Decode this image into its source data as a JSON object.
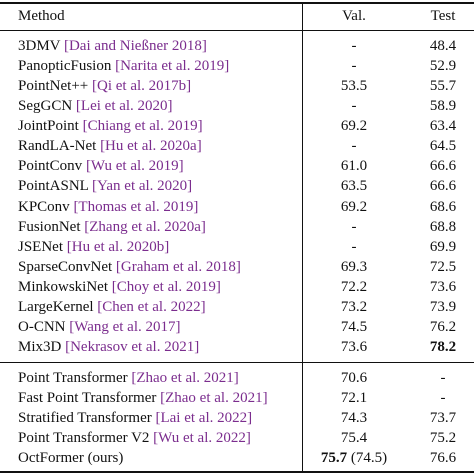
{
  "header": {
    "method": "Method",
    "val": "Val.",
    "test": "Test"
  },
  "groups": [
    {
      "rows": [
        {
          "method": "3DMV",
          "cite": "[Dai and Nießner 2018]",
          "val": "-",
          "test": "48.4"
        },
        {
          "method": "PanopticFusion",
          "cite": "[Narita et al. 2019]",
          "val": "-",
          "test": "52.9"
        },
        {
          "method": "PointNet++",
          "cite": "[Qi et al. 2017b]",
          "val": "53.5",
          "test": "55.7"
        },
        {
          "method": "SegGCN",
          "cite": "[Lei et al. 2020]",
          "val": "-",
          "test": "58.9"
        },
        {
          "method": "JointPoint",
          "cite": "[Chiang et al. 2019]",
          "val": "69.2",
          "test": "63.4"
        },
        {
          "method": "RandLA-Net",
          "cite": "[Hu et al. 2020a]",
          "val": "-",
          "test": "64.5"
        },
        {
          "method": "PointConv",
          "cite": "[Wu et al. 2019]",
          "val": "61.0",
          "test": "66.6"
        },
        {
          "method": "PointASNL",
          "cite": "[Yan et al. 2020]",
          "val": "63.5",
          "test": "66.6"
        },
        {
          "method": "KPConv",
          "cite": "[Thomas et al. 2019]",
          "val": "69.2",
          "test": "68.6"
        },
        {
          "method": "FusionNet",
          "cite": "[Zhang et al. 2020a]",
          "val": "-",
          "test": "68.8"
        },
        {
          "method": "JSENet",
          "cite": "[Hu et al. 2020b]",
          "val": "-",
          "test": "69.9"
        },
        {
          "method": "SparseConvNet",
          "cite": "[Graham et al. 2018]",
          "val": "69.3",
          "test": "72.5"
        },
        {
          "method": "MinkowskiNet",
          "cite": "[Choy et al. 2019]",
          "val": "72.2",
          "test": "73.6"
        },
        {
          "method": "LargeKernel",
          "cite": "[Chen et al. 2022]",
          "val": "73.2",
          "test": "73.9"
        },
        {
          "method": "O-CNN",
          "cite": "[Wang et al. 2017]",
          "val": "74.5",
          "test": "76.2"
        },
        {
          "method": "Mix3D",
          "cite": "[Nekrasov et al. 2021]",
          "val": "73.6",
          "test": "78.2",
          "bold_test": true
        }
      ]
    },
    {
      "rows": [
        {
          "method": "Point Transformer",
          "cite": "[Zhao et al. 2021]",
          "val": "70.6",
          "test": "-"
        },
        {
          "method": "Fast Point Transformer",
          "cite": "[Zhao et al. 2021]",
          "val": "72.1",
          "test": "-"
        },
        {
          "method": "Stratified Transformer",
          "cite": "[Lai et al. 2022]",
          "val": "74.3",
          "test": "73.7"
        },
        {
          "method": "Point Transformer V2",
          "cite": "[Wu et al. 2022]",
          "val": "75.4",
          "test": "75.2"
        },
        {
          "method": "OctFormer (ours)",
          "val": "75.7",
          "val_note": "(74.5)",
          "test": "76.6",
          "bold_val": true
        }
      ]
    }
  ]
}
